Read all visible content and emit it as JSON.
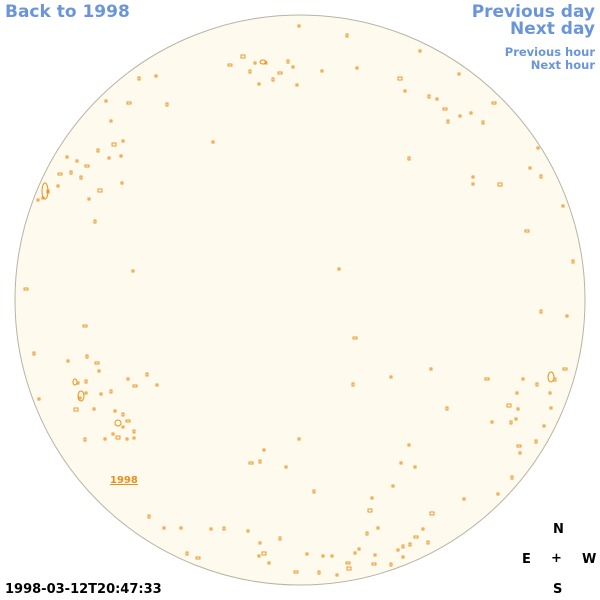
{
  "nav": {
    "back": "Back to 1998",
    "previous_day": "Previous day",
    "next_day": "Next day",
    "previous_hour": "Previous hour",
    "next_hour": "Next hour"
  },
  "disk": {
    "year_label": "1998",
    "colors": {
      "disk_fill": "#fffaee",
      "disk_edge": "#b9b3a4",
      "contour": "#e8901a"
    }
  },
  "compass": {
    "north": "N",
    "south": "S",
    "east": "E",
    "west": "W",
    "center": "+"
  },
  "timestamp": "1998-03-12T20:47:33"
}
